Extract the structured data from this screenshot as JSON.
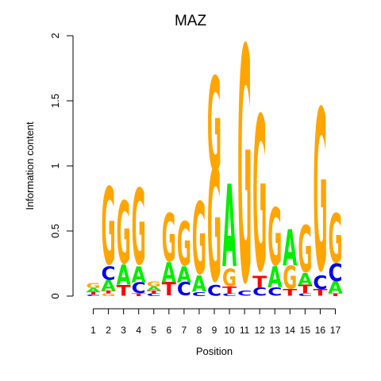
{
  "chart_data": {
    "type": "sequence-logo",
    "title": "MAZ",
    "xlabel": "Position",
    "ylabel": "Information content",
    "ylim": [
      0,
      2
    ],
    "yticks": [
      "0",
      "0.5",
      "1",
      "1.5",
      "2"
    ],
    "positions": [
      "1",
      "2",
      "3",
      "4",
      "5",
      "6",
      "7",
      "8",
      "9",
      "10",
      "11",
      "12",
      "13",
      "14",
      "15",
      "16",
      "17"
    ],
    "colors": {
      "A": "#00ee00",
      "C": "#0000ee",
      "G": "#ffa500",
      "T": "#ff0000"
    },
    "columns": [
      [
        [
          "C",
          0.01
        ],
        [
          "T",
          0.02
        ],
        [
          "A",
          0.03
        ],
        [
          "G",
          0.04
        ]
      ],
      [
        [
          "G",
          0.02
        ],
        [
          "T",
          0.02
        ],
        [
          "A",
          0.08
        ],
        [
          "C",
          0.1
        ],
        [
          "G",
          0.58
        ]
      ],
      [
        [
          "T",
          0.08
        ],
        [
          "A",
          0.15
        ],
        [
          "G",
          0.47
        ]
      ],
      [
        [
          "T",
          0.02
        ],
        [
          "C",
          0.08
        ],
        [
          "A",
          0.12
        ],
        [
          "G",
          0.57
        ]
      ],
      [
        [
          "C",
          0.02
        ],
        [
          "T",
          0.02
        ],
        [
          "A",
          0.03
        ],
        [
          "G",
          0.04
        ]
      ],
      [
        [
          "T",
          0.1
        ],
        [
          "A",
          0.15
        ],
        [
          "G",
          0.36
        ]
      ],
      [
        [
          "C",
          0.1
        ],
        [
          "A",
          0.12
        ],
        [
          "G",
          0.33
        ]
      ],
      [
        [
          "C",
          0.03
        ],
        [
          "A",
          0.12
        ],
        [
          "G",
          0.54
        ]
      ],
      [
        [
          "C",
          0.08
        ],
        [
          "G",
          0.85
        ],
        [
          "G",
          0.71
        ]
      ],
      [
        [
          "C",
          0.02
        ],
        [
          "T",
          0.05
        ],
        [
          "G",
          0.13
        ],
        [
          "A",
          0.62
        ]
      ],
      [
        [
          "C",
          0.04
        ],
        [
          "G",
          1.76
        ]
      ],
      [
        [
          "C",
          0.06
        ],
        [
          "T",
          0.09
        ],
        [
          "G",
          1.16
        ]
      ],
      [
        [
          "C",
          0.06
        ],
        [
          "A",
          0.16
        ],
        [
          "G",
          0.43
        ]
      ],
      [
        [
          "T",
          0.05
        ],
        [
          "G",
          0.17
        ],
        [
          "A",
          0.27
        ]
      ],
      [
        [
          "C",
          0.02
        ],
        [
          "T",
          0.06
        ],
        [
          "A",
          0.09
        ],
        [
          "G",
          0.35
        ]
      ],
      [
        [
          "T",
          0.05
        ],
        [
          "C",
          0.1
        ],
        [
          "G",
          1.21
        ]
      ],
      [
        [
          "T",
          0.02
        ],
        [
          "A",
          0.09
        ],
        [
          "C",
          0.13
        ],
        [
          "G",
          0.37
        ]
      ]
    ]
  }
}
